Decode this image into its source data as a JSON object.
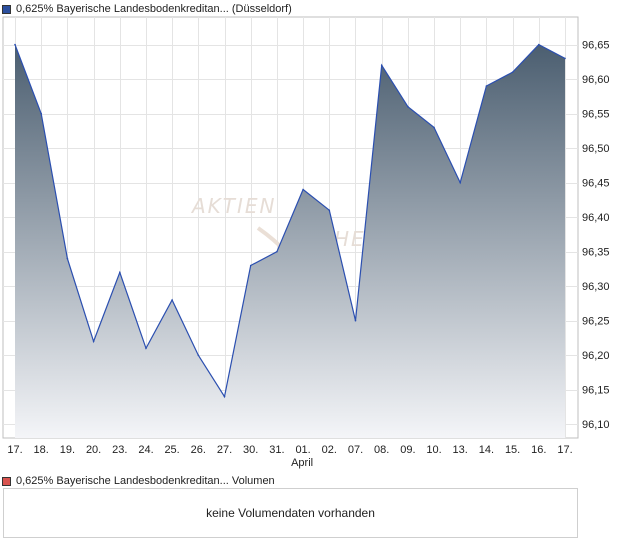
{
  "price_legend": {
    "label": "0,625% Bayerische Landesbodenkreditan... (Düsseldorf)",
    "color": "#2b4f9e"
  },
  "volume_legend": {
    "label": "0,625% Bayerische Landesbodenkreditan... Volumen",
    "color": "#d9534f"
  },
  "volume_panel": {
    "message": "keine Volumendaten vorhanden"
  },
  "watermark": {
    "text": "AKTIEN",
    "text2": "CHECK"
  },
  "chart_data": {
    "type": "area",
    "x": [
      "17.",
      "18.",
      "19.",
      "20.",
      "23.",
      "24.",
      "25.",
      "26.",
      "27.",
      "30.",
      "31.",
      "01.",
      "02.",
      "07.",
      "08.",
      "09.",
      "10.",
      "13.",
      "14.",
      "15.",
      "16.",
      "17."
    ],
    "month_label": {
      "at_index": 11,
      "text": "April"
    },
    "series": [
      {
        "values": [
          96.65,
          96.55,
          96.34,
          96.22,
          96.32,
          96.21,
          96.28,
          96.2,
          96.14,
          96.33,
          96.35,
          96.44,
          96.41,
          96.25,
          96.62,
          96.56,
          96.53,
          96.45,
          96.59,
          96.61,
          96.65,
          96.63
        ]
      }
    ],
    "ylim": [
      96.08,
      96.69
    ],
    "yticks": [
      "96,10",
      "96,15",
      "96,20",
      "96,25",
      "96,30",
      "96,35",
      "96,40",
      "96,45",
      "96,50",
      "96,55",
      "96,60",
      "96,65"
    ],
    "ytick_values": [
      96.1,
      96.15,
      96.2,
      96.25,
      96.3,
      96.35,
      96.4,
      96.45,
      96.5,
      96.55,
      96.6,
      96.65
    ],
    "grid": true,
    "line_color": "#2b4fb0",
    "fill_top_color": "#4b5e70",
    "fill_bottom_color": "#f4f5f8"
  }
}
